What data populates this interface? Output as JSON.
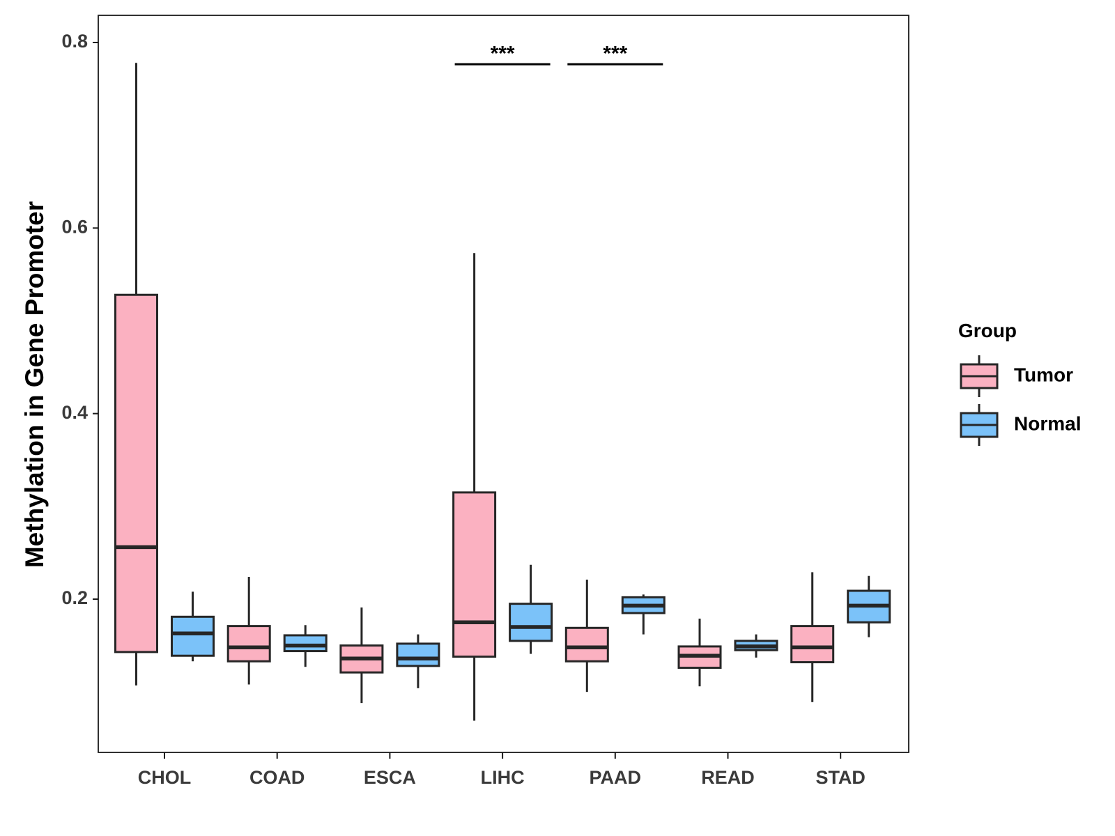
{
  "chart_data": {
    "type": "boxplot",
    "title": "",
    "xlabel": "",
    "ylabel": "Methylation in Gene Promoter",
    "ylim": [
      0.03,
      0.83
    ],
    "yticks": [
      0.2,
      0.4,
      0.6,
      0.8
    ],
    "ytick_labels": [
      "0.2",
      "0.4",
      "0.6",
      "0.8"
    ],
    "grid": false,
    "categories": [
      "CHOL",
      "COAD",
      "ESCA",
      "LIHC",
      "PAAD",
      "READ",
      "STAD"
    ],
    "legend": {
      "title": "Group",
      "position": "right",
      "entries": [
        {
          "name": "Tumor",
          "color": "#FBB1C1"
        },
        {
          "name": "Normal",
          "color": "#7BC2F9"
        }
      ]
    },
    "series": [
      {
        "name": "Tumor",
        "color": "#FBB1C1",
        "boxes": [
          {
            "min": 0.107,
            "q1": 0.143,
            "median": 0.256,
            "q3": 0.528,
            "max": 0.778
          },
          {
            "min": 0.108,
            "q1": 0.133,
            "median": 0.148,
            "q3": 0.171,
            "max": 0.224
          },
          {
            "min": 0.088,
            "q1": 0.121,
            "median": 0.136,
            "q3": 0.15,
            "max": 0.191
          },
          {
            "min": 0.069,
            "q1": 0.138,
            "median": 0.175,
            "q3": 0.315,
            "max": 0.573
          },
          {
            "min": 0.1,
            "q1": 0.133,
            "median": 0.148,
            "q3": 0.169,
            "max": 0.221
          },
          {
            "min": 0.106,
            "q1": 0.126,
            "median": 0.139,
            "q3": 0.149,
            "max": 0.179
          },
          {
            "min": 0.089,
            "q1": 0.132,
            "median": 0.148,
            "q3": 0.171,
            "max": 0.229
          }
        ]
      },
      {
        "name": "Normal",
        "color": "#7BC2F9",
        "boxes": [
          {
            "min": 0.133,
            "q1": 0.139,
            "median": 0.163,
            "q3": 0.181,
            "max": 0.208
          },
          {
            "min": 0.127,
            "q1": 0.144,
            "median": 0.15,
            "q3": 0.161,
            "max": 0.172
          },
          {
            "min": 0.104,
            "q1": 0.128,
            "median": 0.136,
            "q3": 0.152,
            "max": 0.162
          },
          {
            "min": 0.141,
            "q1": 0.155,
            "median": 0.17,
            "q3": 0.195,
            "max": 0.237
          },
          {
            "min": 0.162,
            "q1": 0.185,
            "median": 0.193,
            "q3": 0.202,
            "max": 0.205
          },
          {
            "min": 0.137,
            "q1": 0.145,
            "median": 0.149,
            "q3": 0.155,
            "max": 0.162
          },
          {
            "min": 0.159,
            "q1": 0.175,
            "median": 0.193,
            "q3": 0.209,
            "max": 0.225
          }
        ]
      }
    ],
    "annotations": [
      {
        "category": "LIHC",
        "label": "***",
        "y": 0.775
      },
      {
        "category": "PAAD",
        "label": "***",
        "y": 0.775
      }
    ]
  }
}
